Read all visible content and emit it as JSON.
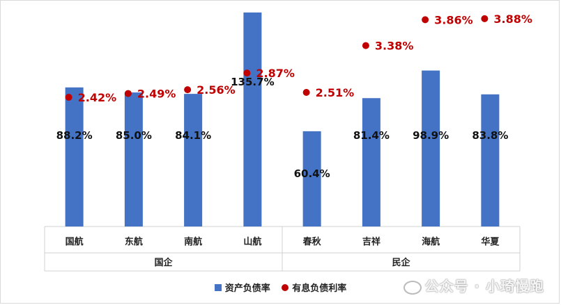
{
  "chart_data": {
    "type": "bar",
    "categories": [
      "国航",
      "东航",
      "南航",
      "山航",
      "春秋",
      "吉祥",
      "海航",
      "华夏"
    ],
    "groups": [
      {
        "label": "国企",
        "categories": [
          "国航",
          "东航",
          "南航",
          "山航"
        ]
      },
      {
        "label": "民企",
        "categories": [
          "春秋",
          "吉祥",
          "海航",
          "华夏"
        ]
      }
    ],
    "series": [
      {
        "name": "资产负债率",
        "kind": "bar",
        "color": "#4472C4",
        "values": [
          88.2,
          85.0,
          84.1,
          135.7,
          60.4,
          81.4,
          98.9,
          83.8
        ],
        "labels": [
          "88.2%",
          "85.0%",
          "84.1%",
          "135.7%",
          "60.4%",
          "81.4%",
          "98.9%",
          "83.8%"
        ]
      },
      {
        "name": "有息负债利率",
        "kind": "scatter",
        "color": "#C00000",
        "values": [
          2.42,
          2.49,
          2.56,
          2.87,
          2.51,
          3.38,
          3.86,
          3.88
        ],
        "labels": [
          "2.42%",
          "2.49%",
          "2.56%",
          "2.87%",
          "2.51%",
          "3.38%",
          "3.86%",
          "3.88%"
        ]
      }
    ],
    "legend_position": "bottom",
    "grid": false
  },
  "legend": {
    "bar_label": "资产负债率",
    "dot_label": "有息负债利率",
    "bar_color": "#4472C4",
    "dot_color": "#C00000"
  },
  "watermark": {
    "text": "公众号 · 小琦慢跑"
  }
}
